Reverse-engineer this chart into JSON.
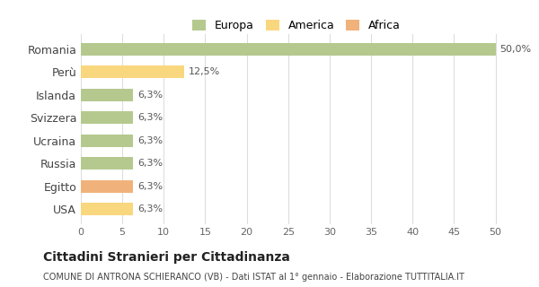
{
  "categories": [
    "Romania",
    "Perù",
    "Islanda",
    "Svizzera",
    "Ucraina",
    "Russia",
    "Egitto",
    "USA"
  ],
  "values": [
    50.0,
    12.5,
    6.3,
    6.3,
    6.3,
    6.3,
    6.3,
    6.3
  ],
  "labels": [
    "50,0%",
    "12,5%",
    "6,3%",
    "6,3%",
    "6,3%",
    "6,3%",
    "6,3%",
    "6,3%"
  ],
  "colors": [
    "#b5c98e",
    "#f9d77e",
    "#b5c98e",
    "#b5c98e",
    "#b5c98e",
    "#b5c98e",
    "#f0b27a",
    "#f9d77e"
  ],
  "continents": [
    "Europa",
    "America",
    "Europa",
    "Europa",
    "Europa",
    "Europa",
    "Africa",
    "America"
  ],
  "legend_labels": [
    "Europa",
    "America",
    "Africa"
  ],
  "legend_colors": [
    "#b5c98e",
    "#f9d77e",
    "#f0b27a"
  ],
  "xlim": [
    0,
    52
  ],
  "xticks": [
    0,
    5,
    10,
    15,
    20,
    25,
    30,
    35,
    40,
    45,
    50
  ],
  "title": "Cittadini Stranieri per Cittadinanza",
  "subtitle": "COMUNE DI ANTRONA SCHIERANCO (VB) - Dati ISTAT al 1° gennaio - Elaborazione TUTTITALIA.IT",
  "background_color": "#ffffff",
  "grid_color": "#dddddd",
  "bar_height": 0.55
}
